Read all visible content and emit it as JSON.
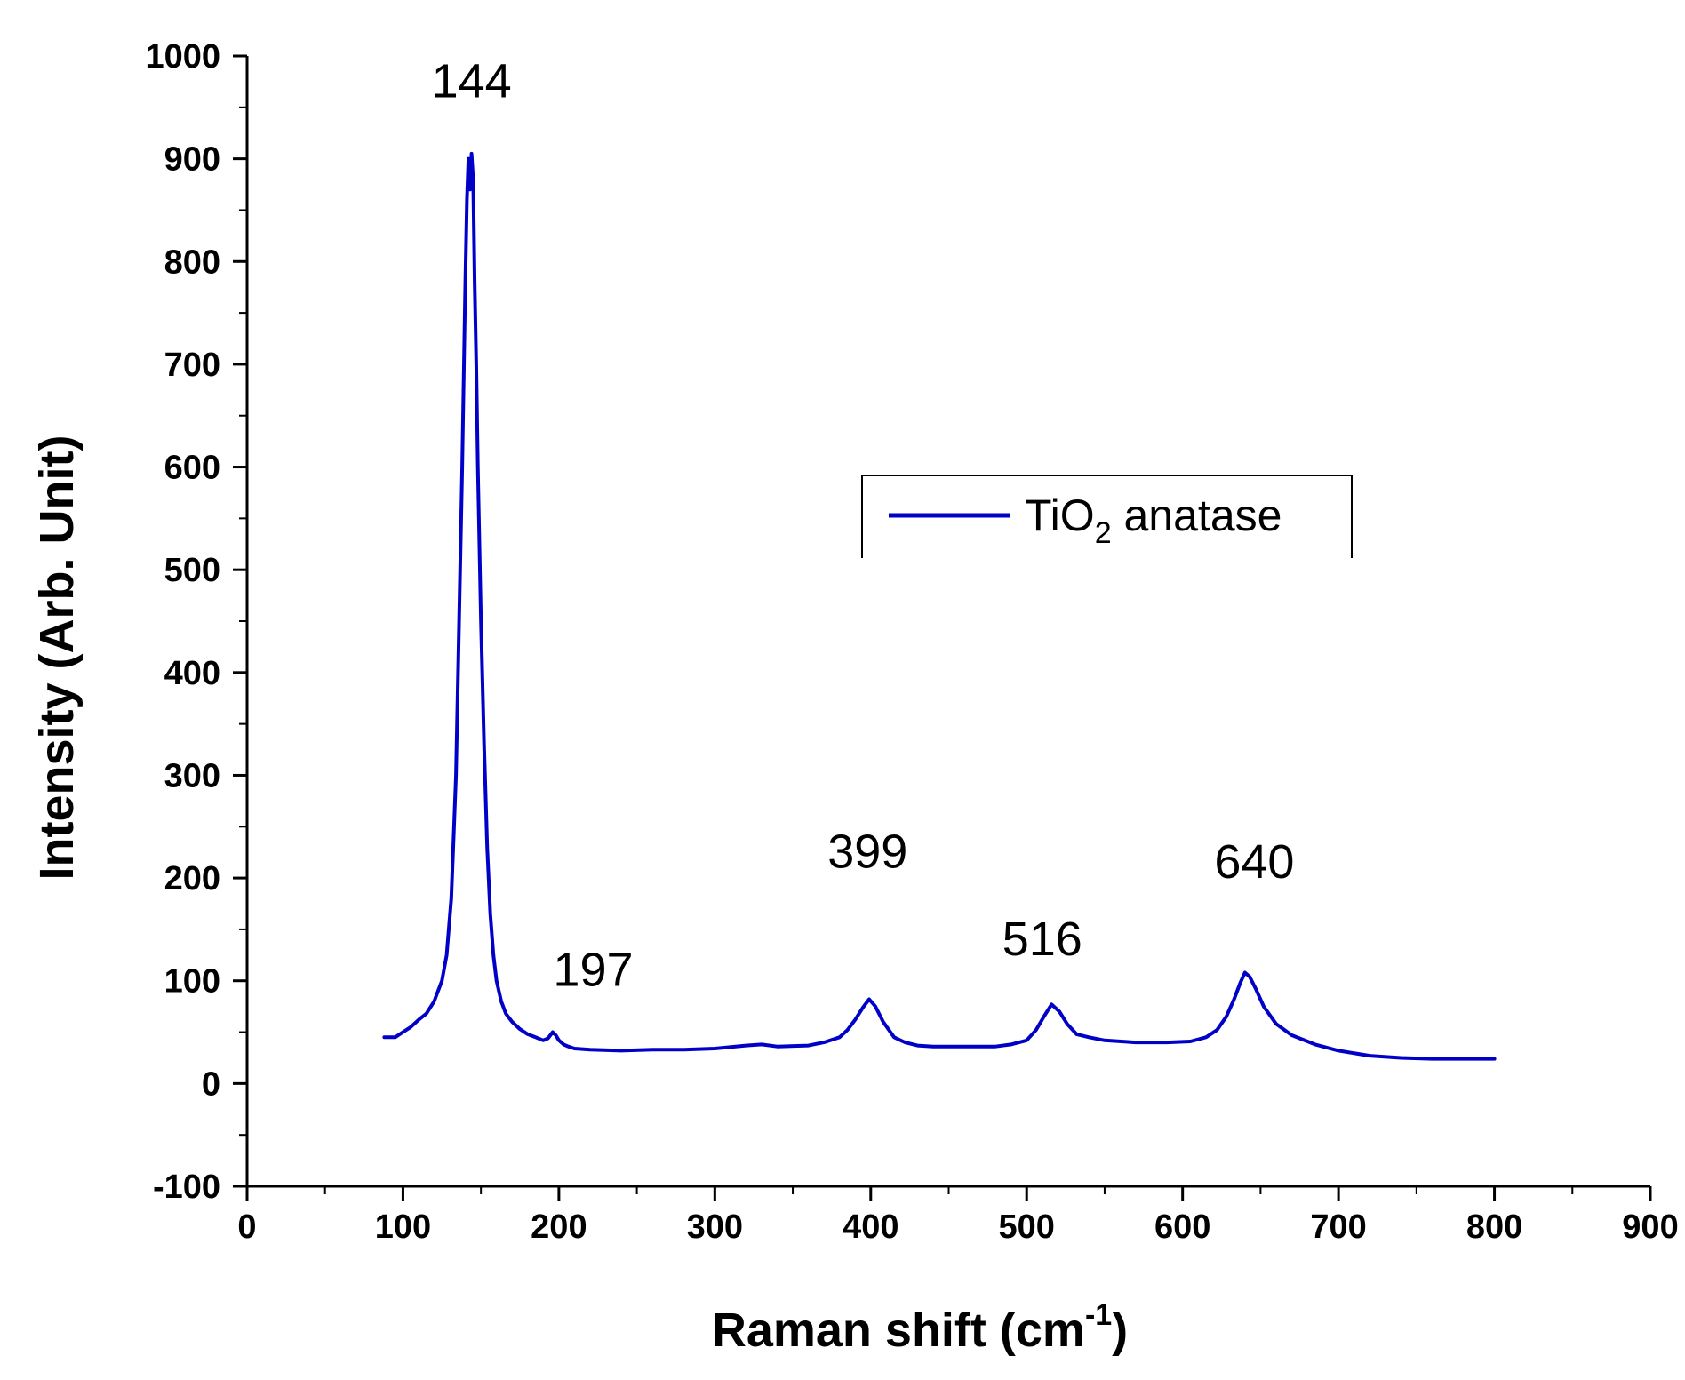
{
  "chart_data": {
    "type": "line",
    "title": "",
    "xlabel": "Raman shift (cm",
    "xlabel_superscript": "-1",
    "xlabel_close": ")",
    "ylabel": "Intensity (Arb. Unit)",
    "xlim": [
      0,
      900
    ],
    "ylim": [
      -100,
      1000
    ],
    "xticks": [
      0,
      100,
      200,
      300,
      400,
      500,
      600,
      700,
      800,
      900
    ],
    "yticks": [
      -100,
      0,
      100,
      200,
      300,
      400,
      500,
      600,
      700,
      800,
      900,
      1000
    ],
    "xtick_labels": [
      "0",
      "100",
      "200",
      "300",
      "400",
      "500",
      "600",
      "700",
      "800",
      "900"
    ],
    "ytick_labels": [
      "-100",
      "0",
      "100",
      "200",
      "300",
      "400",
      "500",
      "600",
      "700",
      "800",
      "900",
      "1000"
    ],
    "grid": false,
    "legend_position": "center-right",
    "legend": {
      "base": "TiO",
      "subscript": "2",
      "suffix": " anatase"
    },
    "series": [
      {
        "name": "TiO2 anatase",
        "color": "#0000c8",
        "x": [
          88,
          95,
          100,
          105,
          110,
          115,
          120,
          125,
          128,
          131,
          134,
          136,
          138,
          140,
          141,
          142,
          143,
          144,
          145,
          146,
          147,
          148,
          150,
          152,
          154,
          156,
          158,
          160,
          163,
          166,
          170,
          175,
          180,
          185,
          190,
          193,
          196,
          198,
          200,
          203,
          206,
          210,
          220,
          240,
          260,
          280,
          300,
          320,
          330,
          340,
          360,
          370,
          380,
          385,
          390,
          395,
          399,
          403,
          408,
          415,
          422,
          430,
          440,
          460,
          480,
          490,
          500,
          506,
          511,
          516,
          521,
          526,
          532,
          540,
          550,
          570,
          590,
          605,
          615,
          622,
          628,
          633,
          637,
          640,
          643,
          647,
          652,
          660,
          670,
          685,
          700,
          720,
          740,
          760,
          780,
          800
        ],
        "y": [
          45,
          45,
          50,
          55,
          62,
          68,
          80,
          100,
          125,
          180,
          300,
          450,
          600,
          780,
          860,
          900,
          870,
          905,
          880,
          780,
          700,
          600,
          450,
          330,
          230,
          165,
          125,
          100,
          80,
          68,
          60,
          53,
          48,
          45,
          42,
          44,
          50,
          47,
          42,
          38,
          36,
          34,
          33,
          32,
          33,
          33,
          34,
          37,
          38,
          36,
          37,
          40,
          45,
          52,
          62,
          74,
          82,
          75,
          60,
          45,
          40,
          37,
          36,
          36,
          36,
          38,
          42,
          52,
          65,
          77,
          70,
          58,
          48,
          45,
          42,
          40,
          40,
          41,
          45,
          52,
          65,
          82,
          98,
          108,
          104,
          92,
          75,
          58,
          47,
          38,
          32,
          27,
          25,
          24,
          24,
          24
        ]
      }
    ],
    "annotations": [
      {
        "text": "144",
        "x": 144,
        "y": 960
      },
      {
        "text": "197",
        "x": 222,
        "y": 95
      },
      {
        "text": "399",
        "x": 398,
        "y": 210
      },
      {
        "text": "516",
        "x": 510,
        "y": 125
      },
      {
        "text": "640",
        "x": 646,
        "y": 200
      }
    ]
  }
}
